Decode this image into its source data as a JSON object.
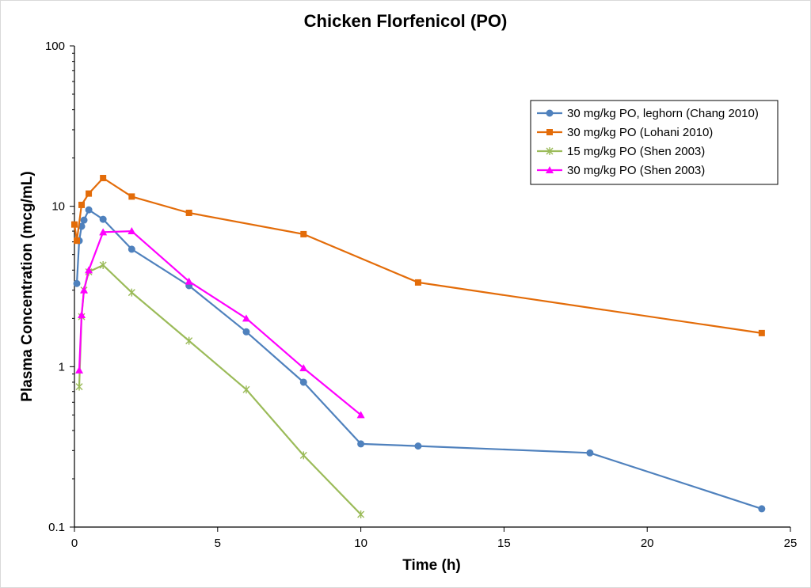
{
  "chart_data": {
    "type": "line",
    "title": "Chicken Florfenicol (PO)",
    "xlabel": "Time (h)",
    "ylabel": "Plasma Concentration (mcg/mL)",
    "xlim": [
      0,
      25
    ],
    "ylim": [
      0.1,
      100
    ],
    "yscale": "log",
    "x_ticks": [
      0,
      5,
      10,
      15,
      20,
      25
    ],
    "x_tick_labels": [
      "0",
      "5",
      "10",
      "15",
      "20",
      "25"
    ],
    "y_ticks": [
      0.1,
      1,
      10,
      100
    ],
    "y_tick_labels": [
      "0.1",
      "1",
      "10",
      "100"
    ],
    "grid": false,
    "legend_position": "top-right",
    "series": [
      {
        "name": "30 mg/kg PO, leghorn (Chang 2010)",
        "color": "#4f81bd",
        "marker": "circle",
        "x": [
          0.083,
          0.167,
          0.25,
          0.333,
          0.5,
          1,
          2,
          4,
          6,
          8,
          10,
          12,
          18,
          24
        ],
        "y": [
          3.3,
          6.1,
          7.5,
          8.2,
          9.5,
          8.3,
          5.4,
          3.2,
          1.65,
          0.8,
          0.33,
          0.32,
          0.29,
          0.13
        ]
      },
      {
        "name": "30 mg/kg PO (Lohani 2010)",
        "color": "#e36c09",
        "marker": "square",
        "x": [
          0.0,
          0.083,
          0.25,
          0.5,
          1,
          2,
          4,
          8,
          12,
          24
        ],
        "y": [
          7.7,
          6.1,
          10.2,
          12.0,
          15.0,
          11.5,
          9.1,
          6.7,
          3.35,
          1.62
        ]
      },
      {
        "name": "15 mg/kg PO (Shen 2003)",
        "color": "#9bbb59",
        "marker": "star",
        "x": [
          0.167,
          0.25,
          0.333,
          0.5,
          1,
          2,
          4,
          6,
          8,
          10
        ],
        "y": [
          0.75,
          2.05,
          3.0,
          3.9,
          4.3,
          2.9,
          1.45,
          0.72,
          0.28,
          0.12
        ]
      },
      {
        "name": "30 mg/kg PO (Shen 2003)",
        "color": "#ff00ff",
        "marker": "triangle",
        "x": [
          0.167,
          0.25,
          0.333,
          0.5,
          1,
          2,
          4,
          6,
          8,
          10
        ],
        "y": [
          0.95,
          2.1,
          3.0,
          4.0,
          6.9,
          7.0,
          3.4,
          2.0,
          0.98,
          0.5
        ]
      }
    ]
  }
}
